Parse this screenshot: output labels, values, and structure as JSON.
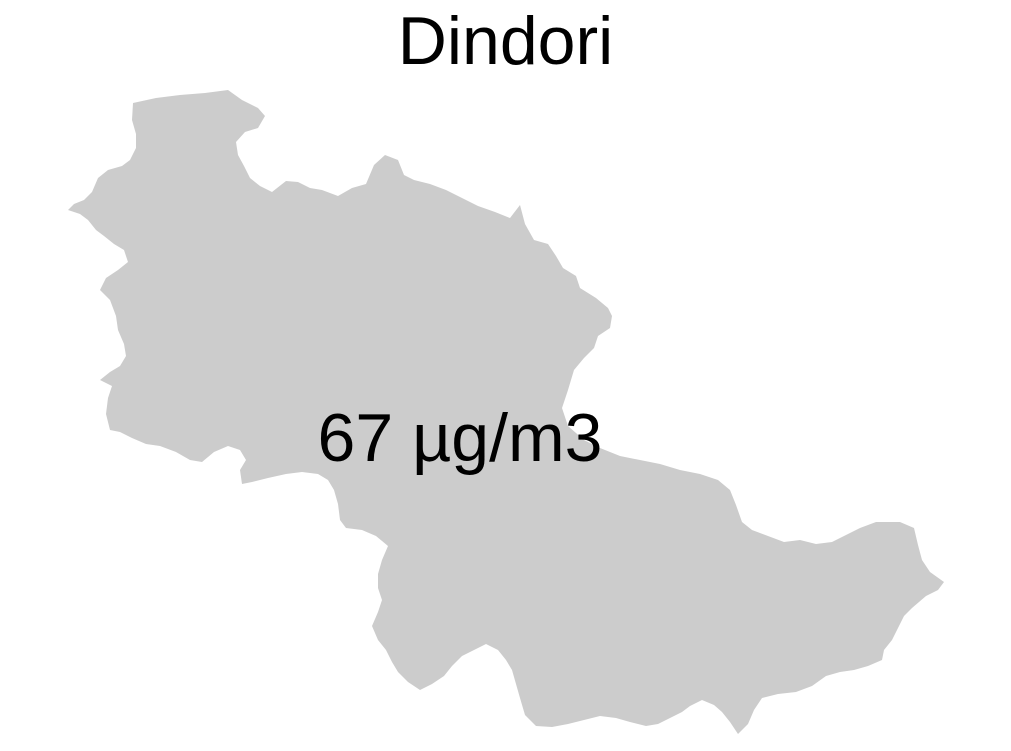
{
  "map": {
    "title": "Dindori",
    "district_name": "Dindori",
    "value_label": "67 µg/m3",
    "fill_color": "#cccccc",
    "background_color": "#ffffff"
  }
}
